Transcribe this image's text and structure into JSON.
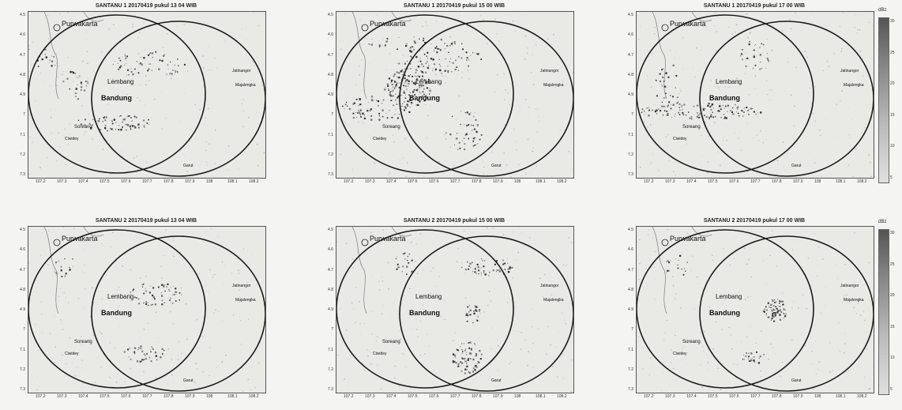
{
  "panels": [
    {
      "title": "SANTANU 1 20170419 pukul 13 04 WIB"
    },
    {
      "title": "SANTANU 1 20170419 pukul 15 00 WIB"
    },
    {
      "title": "SANTANU 1 20170419 pukul 17 00 WIB"
    },
    {
      "title": "SANTANU 2 20170419 pukul 13 04 WIB"
    },
    {
      "title": "SANTANU 2 20170419 pukul 15 00 WIB"
    },
    {
      "title": "SANTANU 2 20170419 pukul 17 00 WIB"
    }
  ],
  "y_ticks": [
    "4.5",
    "4.6",
    "4.7",
    "4.8",
    "4.9",
    "7",
    "7.1",
    "7.2",
    "7.3"
  ],
  "x_ticks": [
    "107.2",
    "107.3",
    "107.4",
    "107.5",
    "107.6",
    "107.7",
    "107.8",
    "107.9",
    "108",
    "108.1",
    "108.2"
  ],
  "places": {
    "purwakarta": "Purwakarta",
    "lembang": "Lembang",
    "bandung": "Bandung",
    "soreang": "Soreang",
    "cewidey": "Ciwidey",
    "jatinangor": "Jatinangor",
    "majalengka": "Majalengka",
    "garut": "Garut"
  },
  "colorbar": {
    "unit": "dBz",
    "ticks": [
      "30",
      "25",
      "20",
      "15",
      "10",
      "5"
    ]
  },
  "colors": {
    "plot_bg": "#e9e9e6",
    "circle": "#1a1a1a",
    "echo": "#444444"
  }
}
